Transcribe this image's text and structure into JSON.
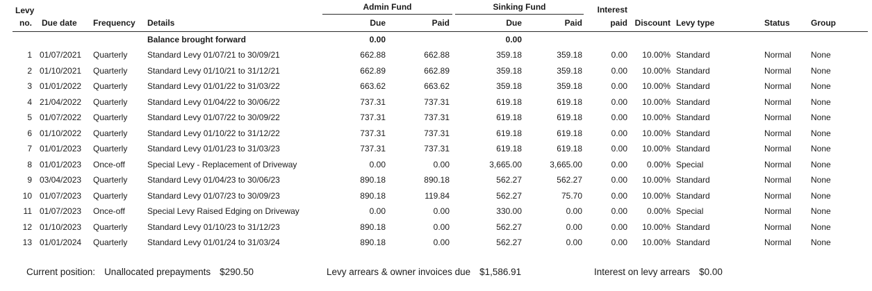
{
  "table": {
    "header": {
      "levy_line1": "Levy",
      "levy_line2": "no.",
      "due_date": "Due date",
      "frequency": "Frequency",
      "details": "Details",
      "admin_fund": "Admin Fund",
      "sinking_fund": "Sinking Fund",
      "admin_due": "Due",
      "admin_paid": "Paid",
      "sinking_due": "Due",
      "sinking_paid": "Paid",
      "interest_line1": "Interest",
      "interest_line2": "paid",
      "discount": "Discount",
      "levy_type": "Levy type",
      "status": "Status",
      "group": "Group"
    },
    "balance_row": {
      "details": "Balance brought forward",
      "admin_due": "0.00",
      "sinking_due": "0.00"
    },
    "rows": [
      {
        "no": "1",
        "due_date": "01/07/2021",
        "frequency": "Quarterly",
        "details": "Standard Levy 01/07/21 to 30/09/21",
        "admin_due": "662.88",
        "admin_paid": "662.88",
        "sinking_due": "359.18",
        "sinking_paid": "359.18",
        "interest_paid": "0.00",
        "discount": "10.00%",
        "levy_type": "Standard",
        "status": "Normal",
        "group": "None"
      },
      {
        "no": "2",
        "due_date": "01/10/2021",
        "frequency": "Quarterly",
        "details": "Standard Levy 01/10/21 to 31/12/21",
        "admin_due": "662.89",
        "admin_paid": "662.89",
        "sinking_due": "359.18",
        "sinking_paid": "359.18",
        "interest_paid": "0.00",
        "discount": "10.00%",
        "levy_type": "Standard",
        "status": "Normal",
        "group": "None"
      },
      {
        "no": "3",
        "due_date": "01/01/2022",
        "frequency": "Quarterly",
        "details": "Standard Levy 01/01/22 to 31/03/22",
        "admin_due": "663.62",
        "admin_paid": "663.62",
        "sinking_due": "359.18",
        "sinking_paid": "359.18",
        "interest_paid": "0.00",
        "discount": "10.00%",
        "levy_type": "Standard",
        "status": "Normal",
        "group": "None"
      },
      {
        "no": "4",
        "due_date": "21/04/2022",
        "frequency": "Quarterly",
        "details": "Standard Levy 01/04/22 to 30/06/22",
        "admin_due": "737.31",
        "admin_paid": "737.31",
        "sinking_due": "619.18",
        "sinking_paid": "619.18",
        "interest_paid": "0.00",
        "discount": "10.00%",
        "levy_type": "Standard",
        "status": "Normal",
        "group": "None"
      },
      {
        "no": "5",
        "due_date": "01/07/2022",
        "frequency": "Quarterly",
        "details": "Standard Levy 01/07/22 to 30/09/22",
        "admin_due": "737.31",
        "admin_paid": "737.31",
        "sinking_due": "619.18",
        "sinking_paid": "619.18",
        "interest_paid": "0.00",
        "discount": "10.00%",
        "levy_type": "Standard",
        "status": "Normal",
        "group": "None"
      },
      {
        "no": "6",
        "due_date": "01/10/2022",
        "frequency": "Quarterly",
        "details": "Standard Levy 01/10/22 to 31/12/22",
        "admin_due": "737.31",
        "admin_paid": "737.31",
        "sinking_due": "619.18",
        "sinking_paid": "619.18",
        "interest_paid": "0.00",
        "discount": "10.00%",
        "levy_type": "Standard",
        "status": "Normal",
        "group": "None"
      },
      {
        "no": "7",
        "due_date": "01/01/2023",
        "frequency": "Quarterly",
        "details": "Standard Levy 01/01/23 to 31/03/23",
        "admin_due": "737.31",
        "admin_paid": "737.31",
        "sinking_due": "619.18",
        "sinking_paid": "619.18",
        "interest_paid": "0.00",
        "discount": "10.00%",
        "levy_type": "Standard",
        "status": "Normal",
        "group": "None"
      },
      {
        "no": "8",
        "due_date": "01/01/2023",
        "frequency": "Once-off",
        "details": "Special Levy - Replacement of Driveway",
        "admin_due": "0.00",
        "admin_paid": "0.00",
        "sinking_due": "3,665.00",
        "sinking_paid": "3,665.00",
        "interest_paid": "0.00",
        "discount": "0.00%",
        "levy_type": "Special",
        "status": "Normal",
        "group": "None"
      },
      {
        "no": "9",
        "due_date": "03/04/2023",
        "frequency": "Quarterly",
        "details": "Standard Levy 01/04/23 to 30/06/23",
        "admin_due": "890.18",
        "admin_paid": "890.18",
        "sinking_due": "562.27",
        "sinking_paid": "562.27",
        "interest_paid": "0.00",
        "discount": "10.00%",
        "levy_type": "Standard",
        "status": "Normal",
        "group": "None"
      },
      {
        "no": "10",
        "due_date": "01/07/2023",
        "frequency": "Quarterly",
        "details": "Standard Levy 01/07/23 to 30/09/23",
        "admin_due": "890.18",
        "admin_paid": "119.84",
        "sinking_due": "562.27",
        "sinking_paid": "75.70",
        "interest_paid": "0.00",
        "discount": "10.00%",
        "levy_type": "Standard",
        "status": "Normal",
        "group": "None"
      },
      {
        "no": "11",
        "due_date": "01/07/2023",
        "frequency": "Once-off",
        "details": "Special Levy Raised Edging on Driveway",
        "admin_due": "0.00",
        "admin_paid": "0.00",
        "sinking_due": "330.00",
        "sinking_paid": "0.00",
        "interest_paid": "0.00",
        "discount": "0.00%",
        "levy_type": "Special",
        "status": "Normal",
        "group": "None"
      },
      {
        "no": "12",
        "due_date": "01/10/2023",
        "frequency": "Quarterly",
        "details": "Standard Levy 01/10/23 to 31/12/23",
        "admin_due": "890.18",
        "admin_paid": "0.00",
        "sinking_due": "562.27",
        "sinking_paid": "0.00",
        "interest_paid": "0.00",
        "discount": "10.00%",
        "levy_type": "Standard",
        "status": "Normal",
        "group": "None"
      },
      {
        "no": "13",
        "due_date": "01/01/2024",
        "frequency": "Quarterly",
        "details": "Standard Levy 01/01/24 to 31/03/24",
        "admin_due": "890.18",
        "admin_paid": "0.00",
        "sinking_due": "562.27",
        "sinking_paid": "0.00",
        "interest_paid": "0.00",
        "discount": "10.00%",
        "levy_type": "Standard",
        "status": "Normal",
        "group": "None"
      }
    ]
  },
  "footer": {
    "prefix": "Current position:",
    "items": [
      {
        "label": "Unallocated prepayments",
        "value": "$290.50"
      },
      {
        "label": "Levy arrears & owner invoices due",
        "value": "$1,586.91"
      },
      {
        "label": "Interest on levy arrears",
        "value": "$0.00"
      }
    ]
  }
}
